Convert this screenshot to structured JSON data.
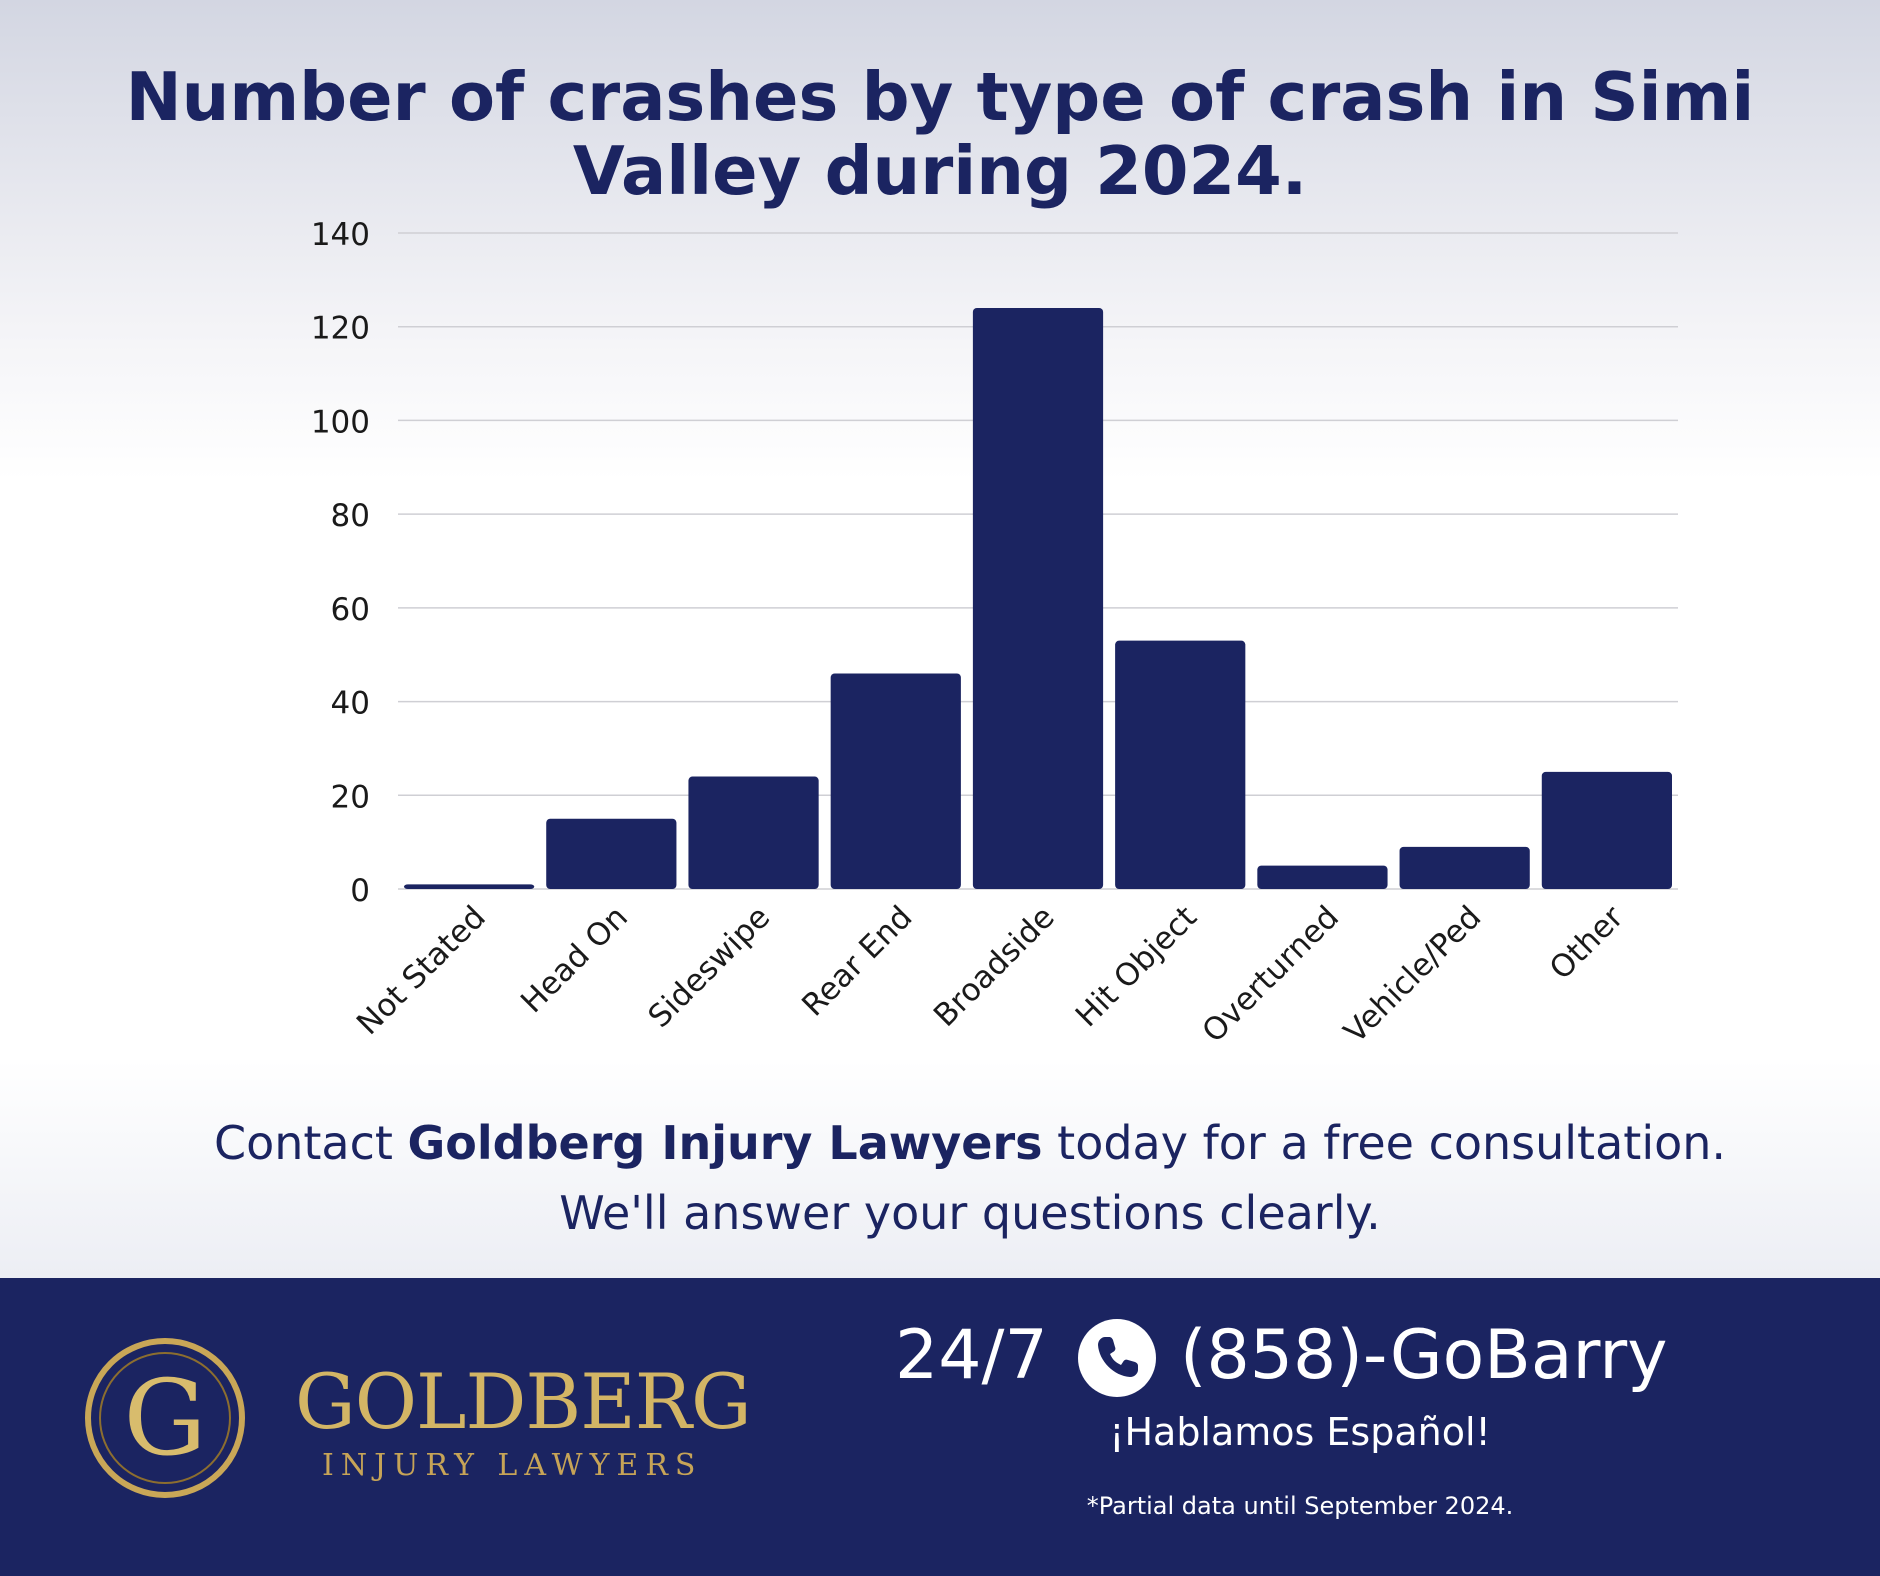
{
  "chart_data": {
    "type": "bar",
    "title": "Number of crashes by type of crash in Simi Valley during 2024.",
    "xlabel": "",
    "ylabel": "",
    "categories": [
      "Not Stated",
      "Head On",
      "Sideswipe",
      "Rear End",
      "Broadside",
      "Hit Object",
      "Overturned",
      "Vehicle/Ped",
      "Other"
    ],
    "values": [
      1,
      15,
      24,
      46,
      124,
      53,
      5,
      9,
      25
    ],
    "ylim": [
      0,
      140
    ],
    "yticks": [
      0,
      20,
      40,
      60,
      80,
      100,
      120,
      140
    ],
    "grid": true,
    "legend": "none",
    "bar_color": "#1b2461"
  },
  "contact": {
    "line1_prefix": "Contact ",
    "line1_bold": "Goldberg Injury Lawyers",
    "line1_suffix": " today for a free consultation.",
    "line2": "We'll answer your questions clearly."
  },
  "footer": {
    "logo_letter": "G",
    "brand_name": "GOLDBERG",
    "brand_sub": "INJURY LAWYERS",
    "hours": "24/7",
    "phone_icon": "phone-icon",
    "phone": "(858)-GoBarry",
    "espanol": "¡Hablamos Español!",
    "note": "*Partial data until September 2024.",
    "background_color": "#1b2461",
    "gold_color": "#c9a757"
  }
}
